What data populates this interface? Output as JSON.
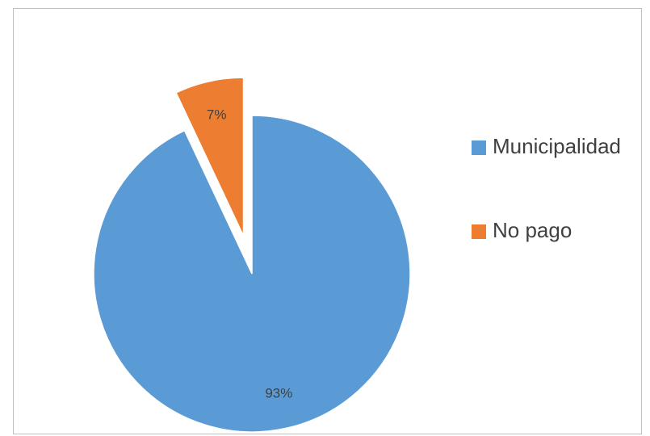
{
  "chart_data": {
    "type": "pie",
    "title": "",
    "legend_position": "right",
    "slices": [
      {
        "name": "Municipalidad",
        "value": 93,
        "label": "93%",
        "color": "#5b9bd5",
        "exploded": false
      },
      {
        "name": "No pago",
        "value": 7,
        "label": "7%",
        "color": "#ed7d31",
        "exploded": true
      }
    ]
  }
}
